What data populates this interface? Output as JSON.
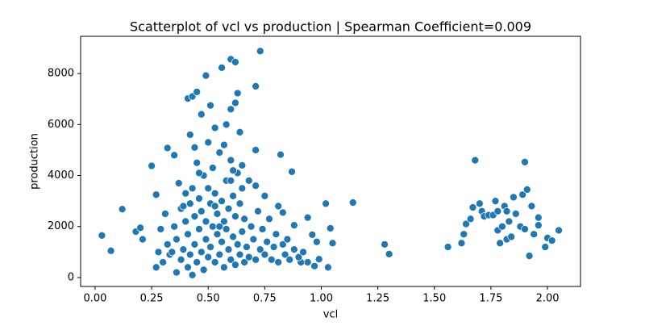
{
  "chart_data": {
    "type": "scatter",
    "title": "Scatterplot of vcl vs production | Spearman Coefficient=0.009",
    "x_label": "vcl",
    "y_label": "production",
    "color": "#1f77b4",
    "xlim": [
      -0.064,
      2.146
    ],
    "ylim": [
      -350,
      9460
    ],
    "xticks": [
      {
        "value": 0,
        "label": "0.00"
      },
      {
        "value": 0.25,
        "label": "0.25"
      },
      {
        "value": 0.5,
        "label": "0.50"
      },
      {
        "value": 0.75,
        "label": "0.75"
      },
      {
        "value": 1,
        "label": "1.00"
      },
      {
        "value": 1.25,
        "label": "1.25"
      },
      {
        "value": 1.5,
        "label": "1.50"
      },
      {
        "value": 1.75,
        "label": "1.75"
      },
      {
        "value": 2,
        "label": "2.00"
      }
    ],
    "yticks": [
      0,
      2000,
      4000,
      6000,
      8000
    ],
    "x": [
      0.03,
      0.07,
      0.12,
      0.18,
      0.2,
      0.21,
      0.25,
      0.27,
      0.32,
      0.35,
      0.41,
      0.43,
      0.45,
      0.49,
      0.51,
      0.56,
      0.6,
      0.62,
      0.73,
      0.71,
      0.63,
      0.62,
      0.6,
      0.58,
      0.47,
      0.53,
      0.42,
      0.64,
      0.71,
      0.82,
      0.87,
      0.75,
      0.81,
      0.83,
      0.88,
      0.94,
      1.02,
      1.04,
      1.05,
      1.03,
      1.14,
      1.28,
      1.3,
      0.96,
      0.98,
      0.99,
      0.97,
      0.91,
      1.56,
      1.62,
      1.63,
      1.64,
      1.66,
      1.67,
      1.68,
      1.7,
      1.71,
      1.72,
      1.74,
      1.76,
      1.77,
      1.78,
      1.78,
      1.79,
      1.8,
      1.81,
      1.82,
      1.82,
      1.83,
      1.84,
      1.85,
      1.86,
      1.88,
      1.89,
      1.9,
      1.91,
      1.92,
      1.93,
      1.94,
      1.96,
      1.96,
      1.99,
      2.0,
      2.02,
      2.05,
      1.9,
      0.3,
      0.32,
      0.33,
      0.35,
      0.36,
      0.37,
      0.38,
      0.38,
      0.39,
      0.4,
      0.4,
      0.41,
      0.41,
      0.42,
      0.42,
      0.43,
      0.43,
      0.44,
      0.44,
      0.45,
      0.45,
      0.46,
      0.46,
      0.47,
      0.47,
      0.48,
      0.48,
      0.49,
      0.49,
      0.5,
      0.5,
      0.51,
      0.51,
      0.52,
      0.52,
      0.53,
      0.53,
      0.54,
      0.54,
      0.55,
      0.55,
      0.56,
      0.56,
      0.57,
      0.57,
      0.58,
      0.58,
      0.59,
      0.59,
      0.6,
      0.6,
      0.61,
      0.61,
      0.62,
      0.62,
      0.63,
      0.63,
      0.64,
      0.64,
      0.65,
      0.65,
      0.66,
      0.66,
      0.67,
      0.68,
      0.68,
      0.69,
      0.7,
      0.71,
      0.71,
      0.72,
      0.73,
      0.74,
      0.75,
      0.76,
      0.77,
      0.78,
      0.79,
      0.8,
      0.81,
      0.83,
      0.84,
      0.85,
      0.86,
      0.88,
      0.9,
      0.92,
      0.94,
      0.28,
      0.27,
      0.29,
      0.31,
      0.34,
      0.36,
      0.44,
      0.5,
      0.57,
      0.61,
      0.65,
      0.39,
      0.46,
      0.53,
      0.6,
      0.55
    ],
    "values": [
      1650,
      1050,
      2680,
      1800,
      1950,
      1500,
      4380,
      3250,
      5080,
      4800,
      7020,
      7100,
      7280,
      7920,
      6750,
      8230,
      8560,
      8450,
      8880,
      7500,
      7230,
      6850,
      6600,
      6000,
      6400,
      5870,
      5600,
      5700,
      5000,
      4820,
      4150,
      3200,
      2800,
      2550,
      2050,
      2350,
      2900,
      1930,
      1350,
      400,
      2940,
      1300,
      920,
      1680,
      1400,
      720,
      450,
      600,
      1200,
      1350,
      1700,
      2100,
      2300,
      2750,
      4600,
      2900,
      2600,
      2400,
      2450,
      2450,
      3000,
      2600,
      1850,
      1350,
      2000,
      2800,
      1500,
      2600,
      2200,
      1600,
      3150,
      2500,
      2000,
      3250,
      4530,
      3450,
      850,
      2800,
      1700,
      2350,
      2050,
      1200,
      1550,
      1450,
      1850,
      1900,
      600,
      1300,
      900,
      2000,
      1500,
      3700,
      2700,
      700,
      1100,
      3300,
      2200,
      400,
      1700,
      2900,
      900,
      100,
      3500,
      2400,
      1300,
      4500,
      600,
      3100,
      1900,
      2600,
      1000,
      4000,
      300,
      2200,
      1500,
      3500,
      800,
      2900,
      1200,
      4300,
      2000,
      600,
      3300,
      1700,
      2500,
      4900,
      900,
      3000,
      1400,
      2200,
      400,
      3800,
      1900,
      2700,
      1100,
      4600,
      700,
      3200,
      1600,
      2400,
      500,
      4100,
      1300,
      2900,
      900,
      3500,
      1800,
      2300,
      600,
      1200,
      3800,
      800,
      2000,
      1500,
      3600,
      700,
      2600,
      1100,
      1900,
      900,
      1400,
      2300,
      700,
      1200,
      1700,
      600,
      1300,
      900,
      1500,
      700,
      1100,
      800,
      1000,
      600,
      1000,
      400,
      1900,
      2500,
      1000,
      200,
      5100,
      5300,
      5200,
      4200,
      4400,
      2800,
      4100,
      2800,
      3800,
      2000
    ]
  }
}
